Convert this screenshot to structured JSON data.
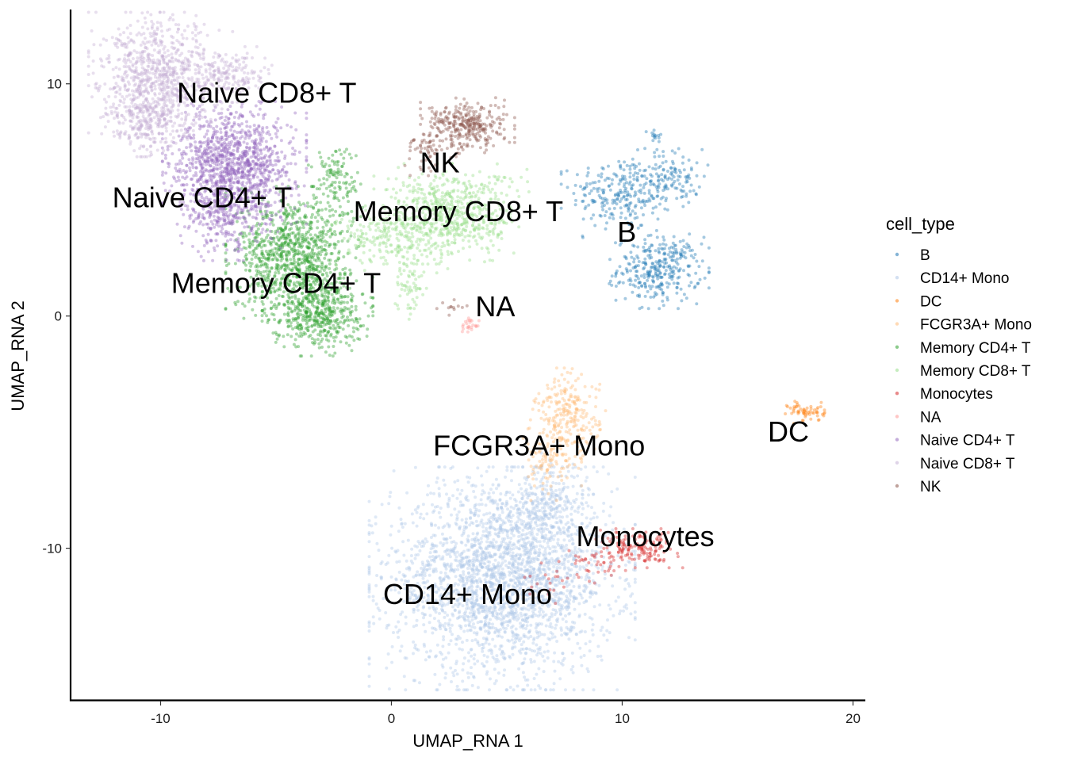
{
  "chart_data": {
    "type": "scatter",
    "title": "",
    "xlabel": "UMAP_RNA 1",
    "ylabel": "UMAP_RNA 2",
    "xlim": [
      -13.9,
      20.5
    ],
    "ylim": [
      -16.5,
      13.2
    ],
    "x_ticks": [
      -10,
      0,
      10,
      20
    ],
    "y_ticks": [
      -10,
      0,
      10
    ],
    "x_tick_labels": [
      "-10",
      "0",
      "10",
      "20"
    ],
    "y_tick_labels": [
      "-10",
      "0",
      "10"
    ],
    "grid": false,
    "legend": {
      "title": "cell_type",
      "placement": "right"
    },
    "point_alpha": 0.4,
    "series": [
      {
        "name": "B",
        "color": "#1f77b4",
        "label_pos": [
          10.2,
          3.6
        ],
        "clusters": [
          {
            "center": [
              10.0,
              5.3
            ],
            "spread": [
              1.1,
              0.8
            ],
            "n": 260
          },
          {
            "center": [
              12.3,
              6.0
            ],
            "spread": [
              0.6,
              0.6
            ],
            "n": 100
          },
          {
            "center": [
              11.6,
              2.0
            ],
            "spread": [
              0.9,
              0.7
            ],
            "n": 320
          },
          {
            "center": [
              11.4,
              7.6
            ],
            "spread": [
              0.15,
              0.3
            ],
            "n": 15
          }
        ]
      },
      {
        "name": "CD14+ Mono",
        "color": "#aec7e8",
        "label_pos": [
          3.3,
          -12.0
        ],
        "clusters": [
          {
            "center": [
              4.8,
              -11.3
            ],
            "spread": [
              2.4,
              2.0
            ],
            "n": 2600
          },
          {
            "center": [
              6.8,
              -8.3
            ],
            "spread": [
              1.0,
              1.0
            ],
            "n": 300
          }
        ]
      },
      {
        "name": "DC",
        "color": "#ff7f0e",
        "label_pos": [
          17.2,
          -5.0
        ],
        "clusters": [
          {
            "center": [
              18.0,
              -4.1
            ],
            "spread": [
              0.4,
              0.22
            ],
            "n": 60
          }
        ]
      },
      {
        "name": "FCGR3A+ Mono",
        "color": "#ffbb78",
        "label_pos": [
          6.4,
          -5.6
        ],
        "clusters": [
          {
            "center": [
              7.6,
              -4.4
            ],
            "spread": [
              0.7,
              0.9
            ],
            "n": 260
          },
          {
            "center": [
              6.8,
              -6.5
            ],
            "spread": [
              0.6,
              0.6
            ],
            "n": 80
          }
        ]
      },
      {
        "name": "Memory CD4+ T",
        "color": "#2ca02c",
        "label_pos": [
          -5.0,
          1.4
        ],
        "clusters": [
          {
            "center": [
              -4.3,
              2.7
            ],
            "spread": [
              1.2,
              1.2
            ],
            "n": 900
          },
          {
            "center": [
              -3.2,
              0.2
            ],
            "spread": [
              1.0,
              0.8
            ],
            "n": 500
          },
          {
            "center": [
              -2.4,
              5.8
            ],
            "spread": [
              0.5,
              0.9
            ],
            "n": 120
          }
        ]
      },
      {
        "name": "Memory CD8+ T",
        "color": "#98df8a",
        "label_pos": [
          2.9,
          4.5
        ],
        "clusters": [
          {
            "center": [
              2.6,
              4.4
            ],
            "spread": [
              1.4,
              0.9
            ],
            "n": 650
          },
          {
            "center": [
              -0.2,
              3.3
            ],
            "spread": [
              1.1,
              0.6
            ],
            "n": 200
          },
          {
            "center": [
              0.8,
              1.3
            ],
            "spread": [
              0.3,
              0.6
            ],
            "n": 60
          }
        ]
      },
      {
        "name": "Monocytes",
        "color": "#d62728",
        "label_pos": [
          11.0,
          -9.5
        ],
        "clusters": [
          {
            "center": [
              10.7,
              -10.0
            ],
            "spread": [
              0.8,
              0.35
            ],
            "n": 160
          },
          {
            "center": [
              8.8,
              -10.8
            ],
            "spread": [
              0.7,
              0.3
            ],
            "n": 40
          },
          {
            "center": [
              7.0,
              -11.6
            ],
            "spread": [
              0.6,
              0.4
            ],
            "n": 20
          }
        ]
      },
      {
        "name": "NA",
        "color": "#ff9896",
        "label_pos": [
          4.5,
          0.4
        ],
        "clusters": [
          {
            "center": [
              3.4,
              -0.4
            ],
            "spread": [
              0.2,
              0.15
            ],
            "n": 25
          }
        ]
      },
      {
        "name": "Naive CD4+ T",
        "color": "#9467bd",
        "label_pos": [
          -8.2,
          5.1
        ],
        "clusters": [
          {
            "center": [
              -6.8,
              6.6
            ],
            "spread": [
              1.3,
              1.1
            ],
            "n": 1100
          },
          {
            "center": [
              -7.2,
              4.3
            ],
            "spread": [
              1.0,
              0.8
            ],
            "n": 300
          }
        ]
      },
      {
        "name": "Naive CD8+ T",
        "color": "#c5b0d5",
        "label_pos": [
          -5.4,
          9.6
        ],
        "clusters": [
          {
            "center": [
              -10.0,
              10.2
            ],
            "spread": [
              1.3,
              1.2
            ],
            "n": 900
          },
          {
            "center": [
              -10.6,
              8.3
            ],
            "spread": [
              0.7,
              0.6
            ],
            "n": 200
          },
          {
            "center": [
              -6.8,
              10.4
            ],
            "spread": [
              0.7,
              0.5
            ],
            "n": 150
          }
        ]
      },
      {
        "name": "NK",
        "color": "#8c564b",
        "label_pos": [
          2.1,
          6.6
        ],
        "clusters": [
          {
            "center": [
              3.3,
              8.2
            ],
            "spread": [
              0.85,
              0.5
            ],
            "n": 320
          },
          {
            "center": [
              1.6,
              7.2
            ],
            "spread": [
              0.5,
              0.5
            ],
            "n": 60
          },
          {
            "center": [
              2.6,
              0.4
            ],
            "spread": [
              0.5,
              0.35
            ],
            "n": 12
          }
        ]
      }
    ]
  }
}
